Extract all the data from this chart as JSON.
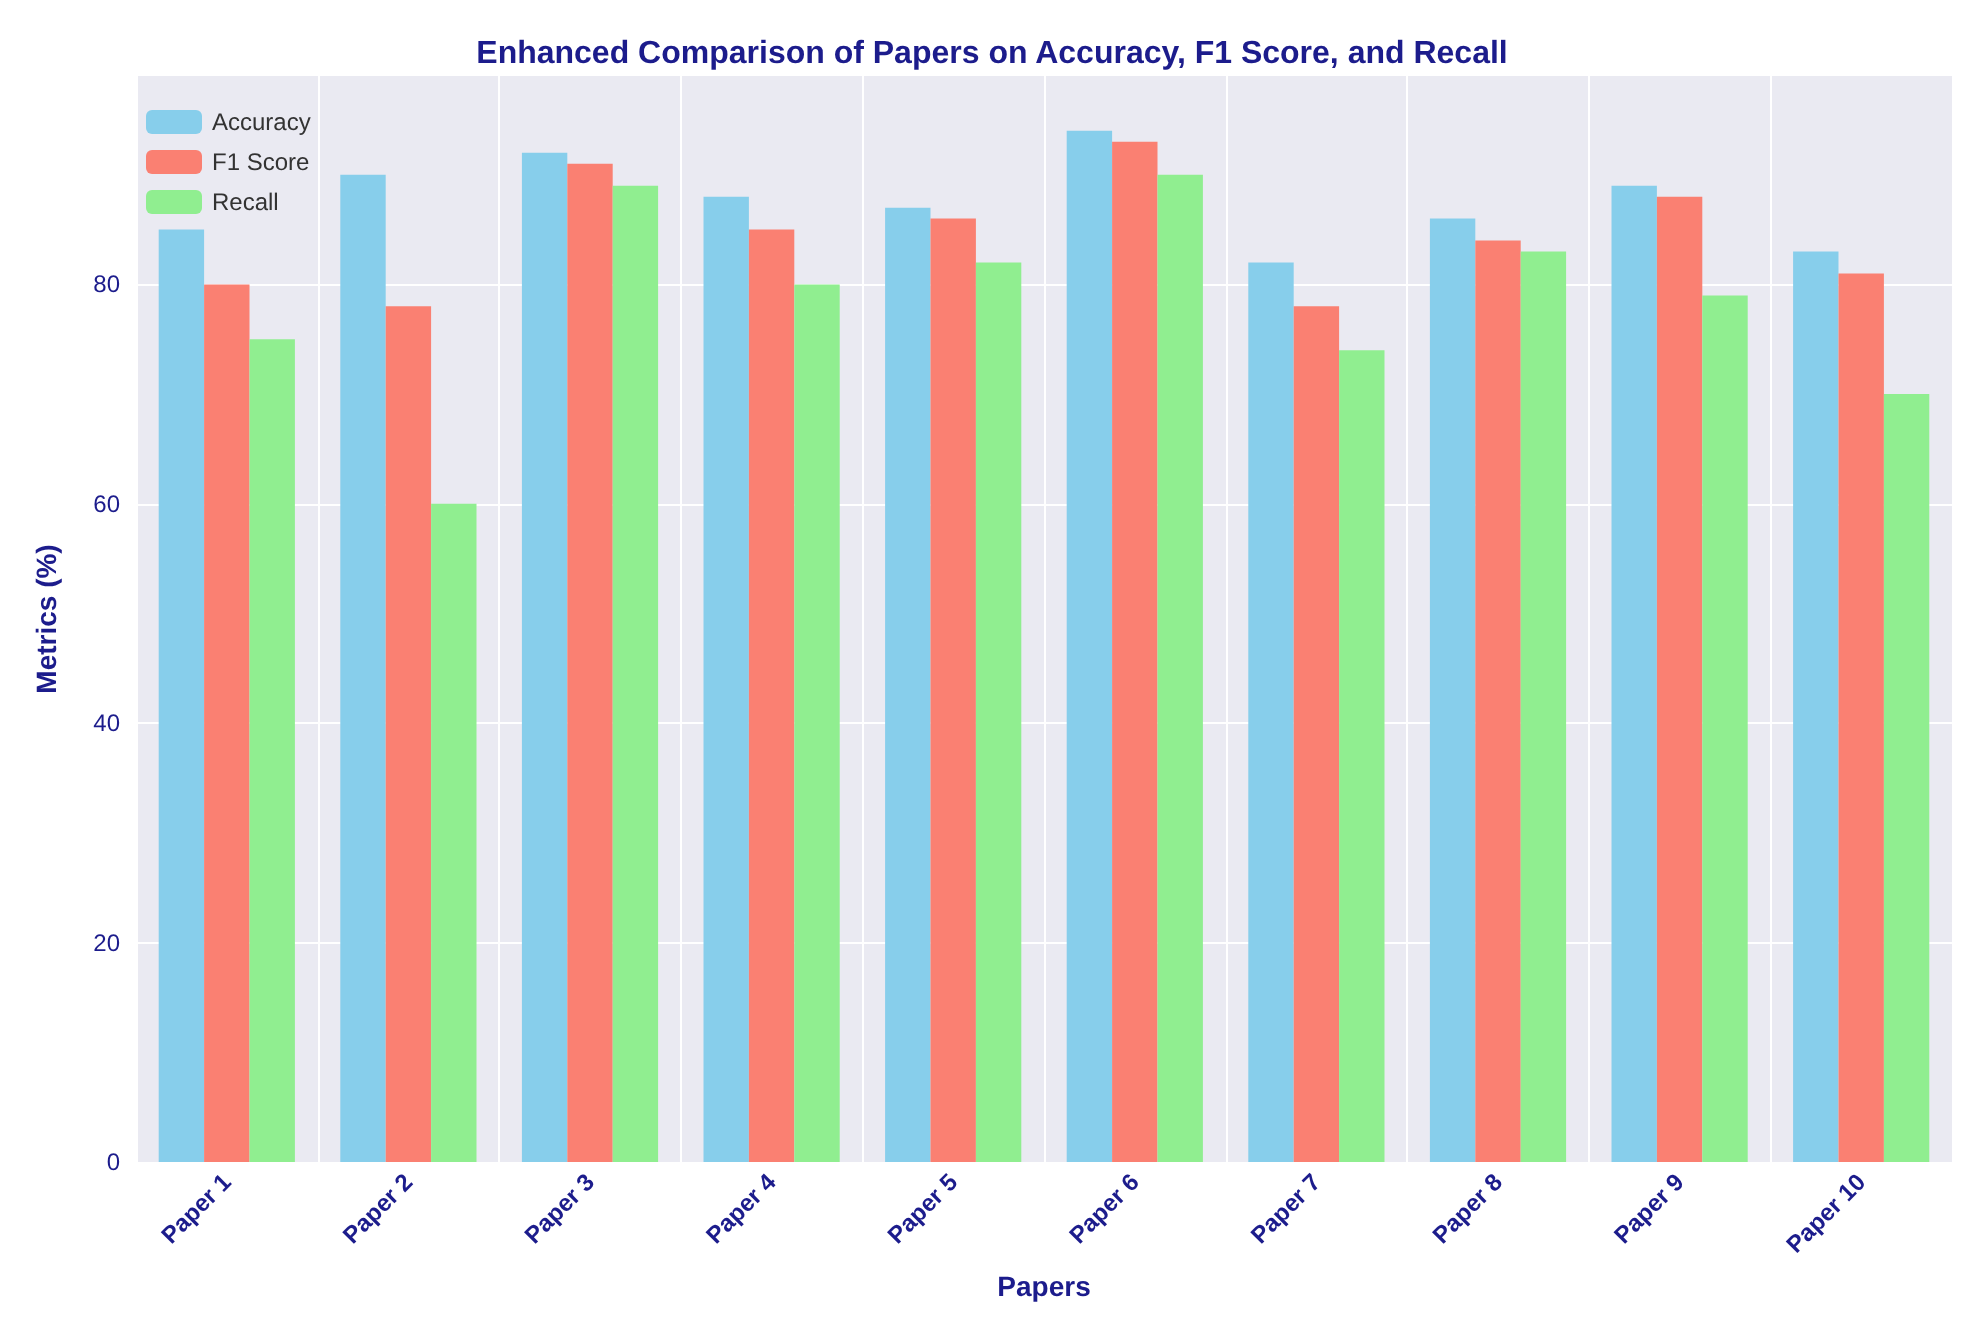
{
  "chart_data": {
    "type": "bar",
    "title": "Enhanced Comparison of Papers on Accuracy, F1 Score, and Recall",
    "xlabel": "Papers",
    "ylabel": "Metrics (%)",
    "categories": [
      "Paper 1",
      "Paper 2",
      "Paper 3",
      "Paper 4",
      "Paper 5",
      "Paper 6",
      "Paper 7",
      "Paper 8",
      "Paper 9",
      "Paper 10"
    ],
    "series": [
      {
        "name": "Accuracy",
        "color": "#87ceeb",
        "values": [
          85,
          90,
          92,
          88,
          87,
          94,
          82,
          86,
          89,
          83
        ]
      },
      {
        "name": "F1 Score",
        "color": "#fa8072",
        "values": [
          80,
          78,
          91,
          85,
          86,
          93,
          78,
          84,
          88,
          81
        ]
      },
      {
        "name": "Recall",
        "color": "#90ee90",
        "values": [
          75,
          60,
          89,
          80,
          82,
          90,
          74,
          83,
          79,
          70
        ]
      }
    ],
    "ylim": [
      0,
      99
    ],
    "yticks": [
      0,
      20,
      40,
      60,
      80
    ],
    "grid": true,
    "legend": "top left"
  }
}
